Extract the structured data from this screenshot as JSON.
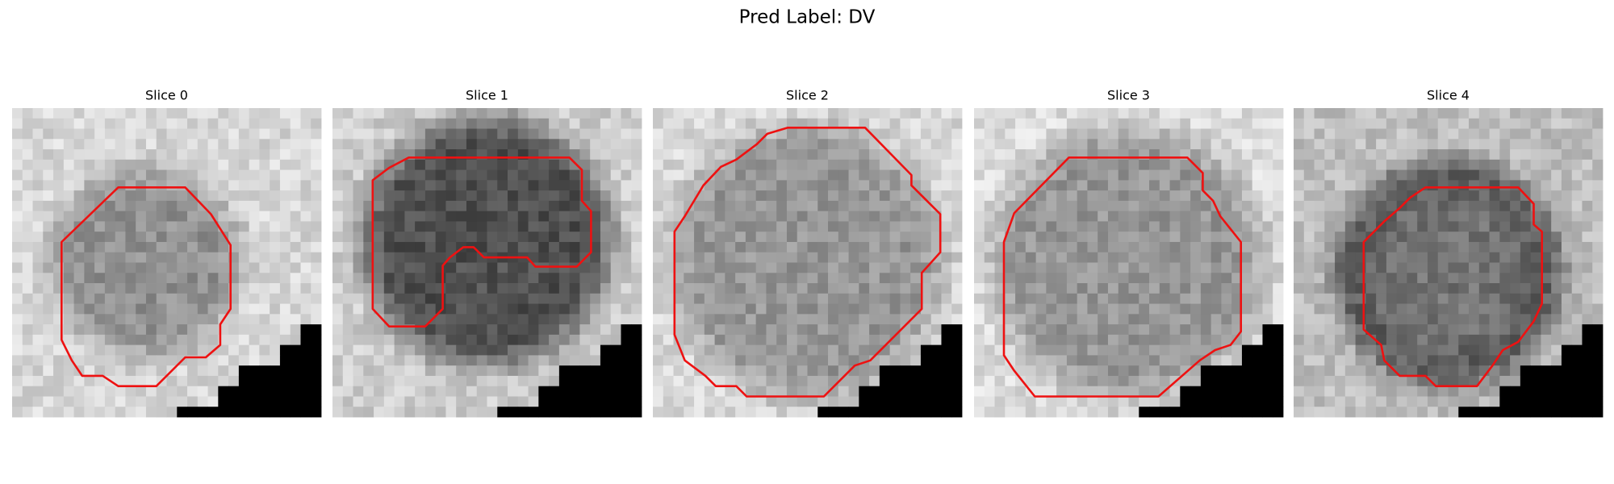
{
  "header": {
    "title": "Pred Label: DV"
  },
  "panels": [
    {
      "title": "Slice 0"
    },
    {
      "title": "Slice 1"
    },
    {
      "title": "Slice 2"
    },
    {
      "title": "Slice 3"
    },
    {
      "title": "Slice 4"
    }
  ]
}
